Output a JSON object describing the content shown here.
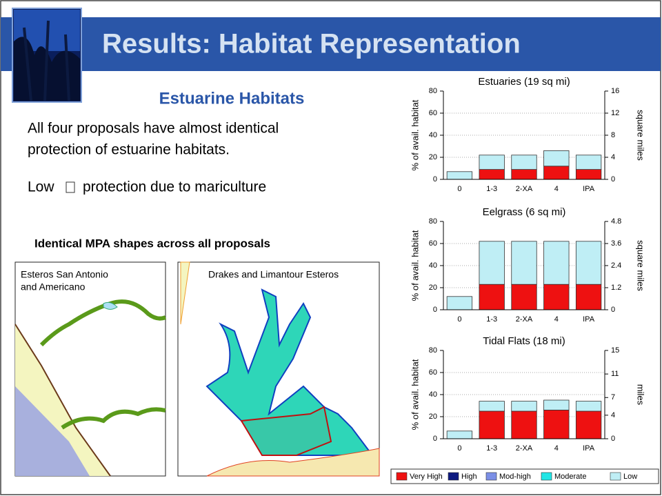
{
  "slide": {
    "title": "Results:  Habitat Representation",
    "subtitle": "Estuarine Habitats",
    "paragraphs": [
      "All four proposals have almost identical",
      "protection of estuarine habitats."
    ],
    "low_note": [
      "Low",
      "protection due to mariculture"
    ],
    "maps_heading": "Identical MPA shapes across all proposals",
    "map_captions": [
      [
        "Esteros San Antonio",
        "and Americano"
      ],
      [
        "Drakes and Limantour Esteros"
      ]
    ]
  },
  "chart_data": [
    {
      "type": "bar",
      "stacked": true,
      "title": "Estuaries (19 sq mi)",
      "ylabel": "% of avail. habitat",
      "y2label": "square miles",
      "categories": [
        "0",
        "1-3",
        "2-XA",
        "4",
        "IPA"
      ],
      "ylim": [
        0,
        80
      ],
      "yticks": [
        0,
        20,
        40,
        60,
        80
      ],
      "y2lim": [
        0,
        16
      ],
      "y2ticks": [
        0,
        4,
        8,
        12,
        16
      ],
      "grid": true,
      "series": [
        {
          "name": "Very High",
          "color": "#ee1111",
          "values": [
            0,
            9,
            9,
            12,
            9
          ]
        },
        {
          "name": "High",
          "color": "#0d1a80",
          "values": [
            0,
            0,
            0,
            0,
            0
          ]
        },
        {
          "name": "Mod-high",
          "color": "#7b8fe6",
          "values": [
            0,
            0,
            0,
            0,
            0
          ]
        },
        {
          "name": "Moderate",
          "color": "#22e6e6",
          "values": [
            0,
            0,
            0,
            0,
            0
          ]
        },
        {
          "name": "Low",
          "color": "#bfeef5",
          "values": [
            7,
            13,
            13,
            14,
            13
          ]
        }
      ]
    },
    {
      "type": "bar",
      "stacked": true,
      "title": "Eelgrass (6 sq mi)",
      "ylabel": "% of avail. habitat",
      "y2label": "square miles",
      "categories": [
        "0",
        "1-3",
        "2-XA",
        "4",
        "IPA"
      ],
      "ylim": [
        0,
        80
      ],
      "yticks": [
        0,
        20,
        40,
        60,
        80
      ],
      "y2lim": [
        0,
        4.8
      ],
      "y2ticks": [
        0,
        1.2,
        2.4,
        3.6,
        4.8
      ],
      "grid": true,
      "series": [
        {
          "color": "#ee1111",
          "values": [
            0,
            23,
            23,
            23,
            23
          ]
        },
        {
          "color": "#0d1a80",
          "values": [
            0,
            0,
            0,
            0,
            0
          ]
        },
        {
          "color": "#7b8fe6",
          "values": [
            0,
            0,
            0,
            0,
            0
          ]
        },
        {
          "color": "#22e6e6",
          "values": [
            0,
            0,
            0,
            0,
            0
          ]
        },
        {
          "color": "#bfeef5",
          "values": [
            12,
            39,
            39,
            39,
            39
          ]
        }
      ]
    },
    {
      "type": "bar",
      "stacked": true,
      "title": "Tidal Flats (18 mi)",
      "ylabel": "% of avail. habitat",
      "y2label": "miles",
      "categories": [
        "0",
        "1-3",
        "2-XA",
        "4",
        "IPA"
      ],
      "ylim": [
        0,
        80
      ],
      "yticks": [
        0,
        20,
        40,
        60,
        80
      ],
      "y2lim": [
        0,
        15
      ],
      "y2ticks": [
        0,
        4,
        7,
        11,
        15
      ],
      "grid": true,
      "series": [
        {
          "color": "#ee1111",
          "values": [
            0,
            25,
            25,
            26,
            25
          ]
        },
        {
          "color": "#0d1a80",
          "values": [
            0,
            0,
            0,
            0,
            0
          ]
        },
        {
          "color": "#7b8fe6",
          "values": [
            0,
            0,
            0,
            0,
            0
          ]
        },
        {
          "color": "#22e6e6",
          "values": [
            0,
            0,
            0,
            0,
            0
          ]
        },
        {
          "color": "#bfeef5",
          "values": [
            7,
            9,
            9,
            9,
            9
          ]
        }
      ]
    }
  ]
}
